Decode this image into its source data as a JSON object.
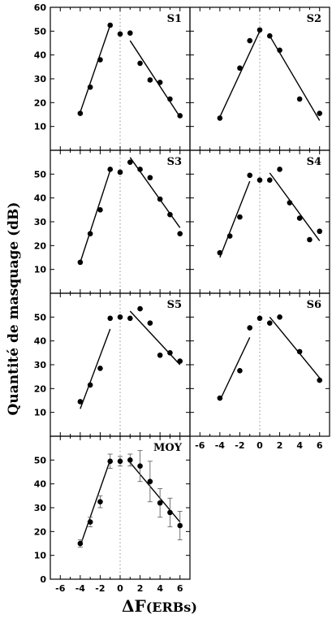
{
  "figure": {
    "ylabel": "Quantité de masquage (dB)",
    "xlabel_symbol": "ΔF",
    "xlabel_unit": "(ERBs)"
  },
  "chart_data": [
    {
      "type": "scatter",
      "title": "S1",
      "xlim": [
        -7,
        7
      ],
      "ylim": [
        0,
        60
      ],
      "yticks": [
        10,
        20,
        30,
        40,
        50,
        60
      ],
      "ytick_labels_shown": true,
      "xtick_labels_shown": false,
      "x": [
        -4,
        -3,
        -2,
        -1,
        0,
        1,
        2,
        3,
        4,
        5,
        6
      ],
      "y": [
        15.5,
        26.5,
        38,
        52.5,
        48.8,
        49.2,
        36.5,
        29.5,
        28.5,
        21.5,
        14.5
      ],
      "fit_lines": [
        {
          "x": [
            -4,
            -1
          ],
          "y": [
            16,
            52.5
          ]
        },
        {
          "x": [
            1,
            6
          ],
          "y": [
            46,
            14
          ]
        }
      ]
    },
    {
      "type": "scatter",
      "title": "S2",
      "xlim": [
        -7,
        7
      ],
      "ylim": [
        0,
        60
      ],
      "yticks": [
        10,
        20,
        30,
        40,
        50,
        60
      ],
      "ytick_labels_shown": false,
      "xtick_labels_shown": false,
      "x": [
        -4,
        -2,
        -1,
        0,
        1,
        2,
        4,
        6
      ],
      "y": [
        13.5,
        34.5,
        46,
        50.5,
        48,
        42,
        21.5,
        15.5
      ],
      "fit_lines": [
        {
          "x": [
            -4,
            0
          ],
          "y": [
            14,
            50
          ]
        },
        {
          "x": [
            1,
            6
          ],
          "y": [
            48,
            12.5
          ]
        }
      ]
    },
    {
      "type": "scatter",
      "title": "S3",
      "xlim": [
        -7,
        7
      ],
      "ylim": [
        0,
        60
      ],
      "yticks": [
        10,
        20,
        30,
        40,
        50
      ],
      "ytick_labels_shown": true,
      "xtick_labels_shown": false,
      "x": [
        -4,
        -3,
        -2,
        -1,
        0,
        1,
        2,
        3,
        4,
        5,
        6
      ],
      "y": [
        13,
        25,
        35,
        52,
        50.8,
        55,
        52,
        48.5,
        39.5,
        33,
        25
      ],
      "fit_lines": [
        {
          "x": [
            -4,
            -1
          ],
          "y": [
            13,
            51.5
          ]
        },
        {
          "x": [
            1,
            6
          ],
          "y": [
            57,
            27.5
          ]
        }
      ]
    },
    {
      "type": "scatter",
      "title": "S4",
      "xlim": [
        -7,
        7
      ],
      "ylim": [
        0,
        60
      ],
      "yticks": [
        10,
        20,
        30,
        40,
        50
      ],
      "ytick_labels_shown": false,
      "xtick_labels_shown": false,
      "x": [
        -4,
        -3,
        -2,
        -1,
        0,
        1,
        2,
        3,
        4,
        5,
        6
      ],
      "y": [
        17,
        24,
        32,
        49.5,
        47.5,
        47.5,
        52,
        38,
        31.5,
        22.5,
        26
      ],
      "fit_lines": [
        {
          "x": [
            -4,
            -1
          ],
          "y": [
            15,
            47
          ]
        },
        {
          "x": [
            1,
            6
          ],
          "y": [
            50.5,
            22
          ]
        }
      ]
    },
    {
      "type": "scatter",
      "title": "S5",
      "xlim": [
        -7,
        7
      ],
      "ylim": [
        0,
        60
      ],
      "yticks": [
        10,
        20,
        30,
        40,
        50
      ],
      "ytick_labels_shown": true,
      "xtick_labels_shown": false,
      "x": [
        -4,
        -3,
        -2,
        -1,
        0,
        1,
        2,
        3,
        4,
        5,
        6
      ],
      "y": [
        14.5,
        21.5,
        28.5,
        49.5,
        50,
        49.5,
        53.5,
        47.5,
        34,
        35,
        31.5
      ],
      "fit_lines": [
        {
          "x": [
            -4,
            -1
          ],
          "y": [
            11.5,
            45
          ]
        },
        {
          "x": [
            1,
            6
          ],
          "y": [
            52.5,
            30
          ]
        }
      ]
    },
    {
      "type": "scatter",
      "title": "S6",
      "xlim": [
        -7,
        7
      ],
      "ylim": [
        0,
        60
      ],
      "yticks": [
        10,
        20,
        30,
        40,
        50
      ],
      "ytick_labels_shown": false,
      "xtick_labels_shown": true,
      "xticks": [
        -6,
        -4,
        -2,
        0,
        2,
        4,
        6
      ],
      "x": [
        -4,
        -2,
        -1,
        0,
        1,
        2,
        4,
        6
      ],
      "y": [
        16,
        27.5,
        45.5,
        49.5,
        47.5,
        50,
        35.5,
        23.5
      ],
      "fit_lines": [
        {
          "x": [
            -4,
            -1
          ],
          "y": [
            15,
            41.5
          ]
        },
        {
          "x": [
            1,
            6
          ],
          "y": [
            50,
            24.5
          ]
        }
      ]
    },
    {
      "type": "scatter",
      "title": "MOY",
      "xlim": [
        -7,
        7
      ],
      "ylim": [
        0,
        60
      ],
      "yticks": [
        0,
        10,
        20,
        30,
        40,
        50
      ],
      "ytick_labels_shown": true,
      "xtick_labels_shown": true,
      "xticks": [
        -6,
        -4,
        -2,
        0,
        2,
        4,
        6
      ],
      "x": [
        -4,
        -3,
        -2,
        -1,
        0,
        1,
        2,
        3,
        4,
        5,
        6
      ],
      "y": [
        15,
        24,
        32.5,
        49.5,
        49.5,
        50,
        47.5,
        41,
        32,
        28,
        22.5
      ],
      "error": [
        1.5,
        2,
        2.5,
        3,
        2,
        2.5,
        6.5,
        8.5,
        6,
        6,
        6
      ],
      "fit_lines": [
        {
          "x": [
            -4,
            -1
          ],
          "y": [
            14,
            50
          ]
        },
        {
          "x": [
            1,
            6
          ],
          "y": [
            49,
            24
          ]
        }
      ]
    }
  ]
}
